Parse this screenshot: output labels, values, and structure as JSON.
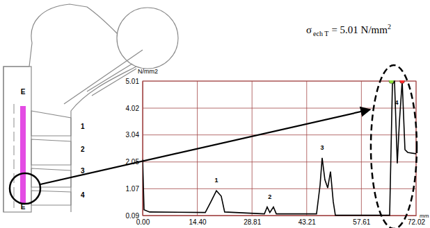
{
  "chart_data": {
    "type": "line",
    "y_label": "N/mm2",
    "x_label": "mm",
    "annotation": {
      "symbol": "σ",
      "subscript": "ech T",
      "text": "= 5.01 N/mm",
      "superscript": "2"
    },
    "x": [
      0.0,
      0.37,
      1.83,
      16.5,
      18.0,
      19.43,
      20.7,
      21.6,
      32.07,
      32.8,
      33.5,
      34.45,
      35.2,
      45.8,
      46.73,
      47.28,
      48.0,
      48.75,
      49.48,
      50.2,
      50.76,
      65.06,
      65.79,
      66.34,
      67.07,
      67.62,
      68.36,
      69.09,
      69.82,
      72.02
    ],
    "values": [
      2.15,
      0.3,
      0.22,
      0.2,
      0.6,
      1.0,
      0.8,
      0.22,
      0.15,
      0.4,
      0.2,
      0.4,
      0.15,
      0.15,
      1.2,
      2.2,
      1.4,
      1.1,
      1.7,
      0.6,
      0.1,
      0.1,
      4.9,
      5.0,
      2.0,
      3.5,
      5.01,
      2.5,
      2.4,
      2.35
    ],
    "color": "#000000",
    "peak_labels": [
      {
        "label": "1",
        "x": 19.43,
        "y": 1.3
      },
      {
        "label": "2",
        "x": 33.5,
        "y": 0.7
      },
      {
        "label": "3",
        "x": 47.28,
        "y": 2.5
      },
      {
        "label": "4",
        "x": 66.9,
        "y": 4.15
      }
    ],
    "highlight_points": {
      "x": [
        65.5,
        68.36
      ],
      "values": [
        5.01,
        5.01
      ],
      "colors": [
        "#8fe03a",
        "#ff2a2a"
      ]
    },
    "xlim": [
      0,
      72.02
    ],
    "ylim": [
      0.09,
      5.01
    ],
    "xticks": [
      {
        "value": 0,
        "label": "0.00"
      },
      {
        "value": 14.4,
        "label": "14.40"
      },
      28.81,
      43.21,
      57.61,
      72.02
    ],
    "yticks": [
      0.09,
      1.07,
      2.05,
      3.04,
      4.02,
      5.01
    ],
    "grid": true
  },
  "schematic": {
    "path_labels": [
      "E",
      "E"
    ],
    "zones": [
      "1",
      "2",
      "3",
      "4"
    ]
  }
}
